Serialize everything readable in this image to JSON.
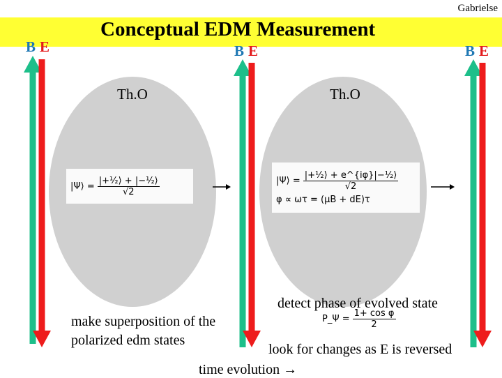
{
  "header": {
    "author": "Gabrielse",
    "title": "Conceptual EDM Measurement"
  },
  "field_labels": {
    "b": "B",
    "e": "E"
  },
  "molecule": "Th.O",
  "formulas": {
    "initial_state": {
      "lhs": "|Ψ⟩ =",
      "numerator": "|+¹⁄₂⟩ + |−¹⁄₂⟩",
      "denominator": "√2"
    },
    "evolved_state": {
      "lhs": "|Ψ⟩ =",
      "numerator": "|+¹⁄₂⟩ + e^{iφ}|−¹⁄₂⟩",
      "denominator": "√2",
      "phase": "φ ∝ ωτ = (μB + dE)τ"
    },
    "probability": {
      "lhs": "P_Ψ =",
      "numerator": "1+ cos φ",
      "denominator": "2"
    }
  },
  "captions": {
    "superposition_line1": "make superposition of the",
    "superposition_line2": "polarized edm states",
    "detect": "detect phase of evolved state",
    "look": "look for changes as E is reversed",
    "time": "time evolution →"
  },
  "colors": {
    "banner": "#ffff33",
    "b_arrow": "#1dbf8a",
    "e_arrow": "#ee1c1c",
    "ellipse": "#d0d0d0"
  }
}
